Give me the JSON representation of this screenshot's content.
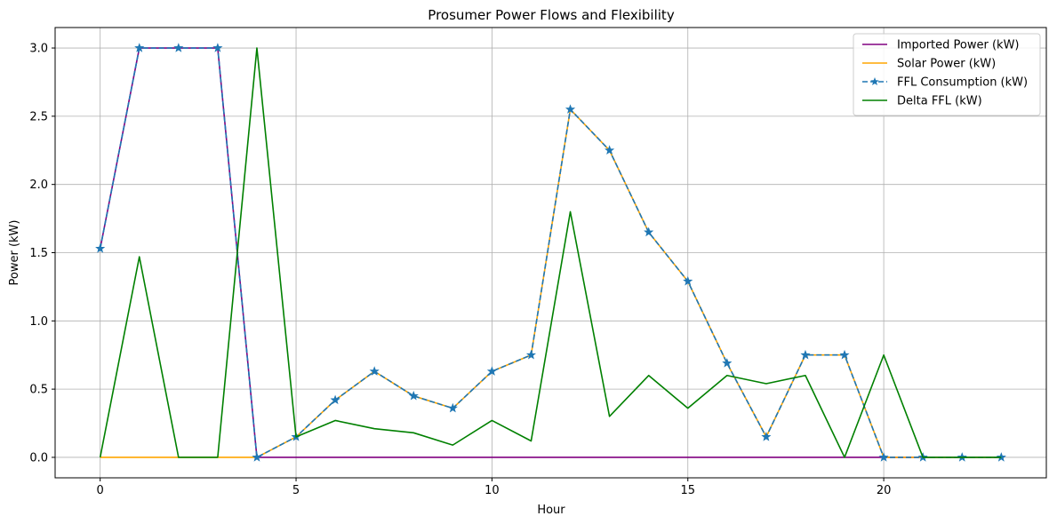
{
  "chart_data": {
    "type": "line",
    "title": "Prosumer Power Flows and Flexibility",
    "xlabel": "Hour",
    "ylabel": "Power (kW)",
    "xlim": [
      -1.15,
      24.15
    ],
    "ylim": [
      -0.15,
      3.15
    ],
    "xticks": [
      0,
      5,
      10,
      15,
      20
    ],
    "xtick_labels": [
      "0",
      "5",
      "10",
      "15",
      "20"
    ],
    "yticks": [
      0.0,
      0.5,
      1.0,
      1.5,
      2.0,
      2.5,
      3.0
    ],
    "ytick_labels": [
      "0.0",
      "0.5",
      "1.0",
      "1.5",
      "2.0",
      "2.5",
      "3.0"
    ],
    "grid": true,
    "legend_position": "top-right",
    "x": [
      0,
      1,
      2,
      3,
      4,
      5,
      6,
      7,
      8,
      9,
      10,
      11,
      12,
      13,
      14,
      15,
      16,
      17,
      18,
      19,
      20,
      21,
      22,
      23
    ],
    "series": [
      {
        "name": "Imported Power (kW)",
        "color": "#800080",
        "style": "solid",
        "marker": "none",
        "values": [
          1.53,
          3.0,
          3.0,
          3.0,
          0,
          0,
          0,
          0,
          0,
          0,
          0,
          0,
          0,
          0,
          0,
          0,
          0,
          0,
          0,
          0,
          0,
          0,
          0,
          0
        ]
      },
      {
        "name": "Solar Power (kW)",
        "color": "#ffa500",
        "style": "solid",
        "marker": "none",
        "values": [
          0,
          0,
          0,
          0,
          0,
          0.15,
          0.42,
          0.63,
          0.45,
          0.36,
          0.63,
          0.75,
          2.55,
          2.25,
          1.65,
          1.29,
          0.69,
          0.15,
          0.75,
          0.75,
          0,
          0,
          0,
          0
        ]
      },
      {
        "name": "FFL Consumption (kW)",
        "color": "#1f77b4",
        "style": "dashed",
        "marker": "star",
        "values": [
          1.53,
          3.0,
          3.0,
          3.0,
          0,
          0.15,
          0.42,
          0.63,
          0.45,
          0.36,
          0.63,
          0.75,
          2.55,
          2.25,
          1.65,
          1.29,
          0.69,
          0.15,
          0.75,
          0.75,
          0,
          0,
          0,
          0
        ]
      },
      {
        "name": "Delta FFL (kW)",
        "color": "#008000",
        "style": "solid",
        "marker": "none",
        "values": [
          0,
          1.47,
          0,
          0,
          3.0,
          0.15,
          0.27,
          0.21,
          0.18,
          0.09,
          0.27,
          0.12,
          1.8,
          0.3,
          0.6,
          0.36,
          0.6,
          0.54,
          0.6,
          0,
          0.75,
          0,
          0,
          0
        ]
      }
    ]
  }
}
